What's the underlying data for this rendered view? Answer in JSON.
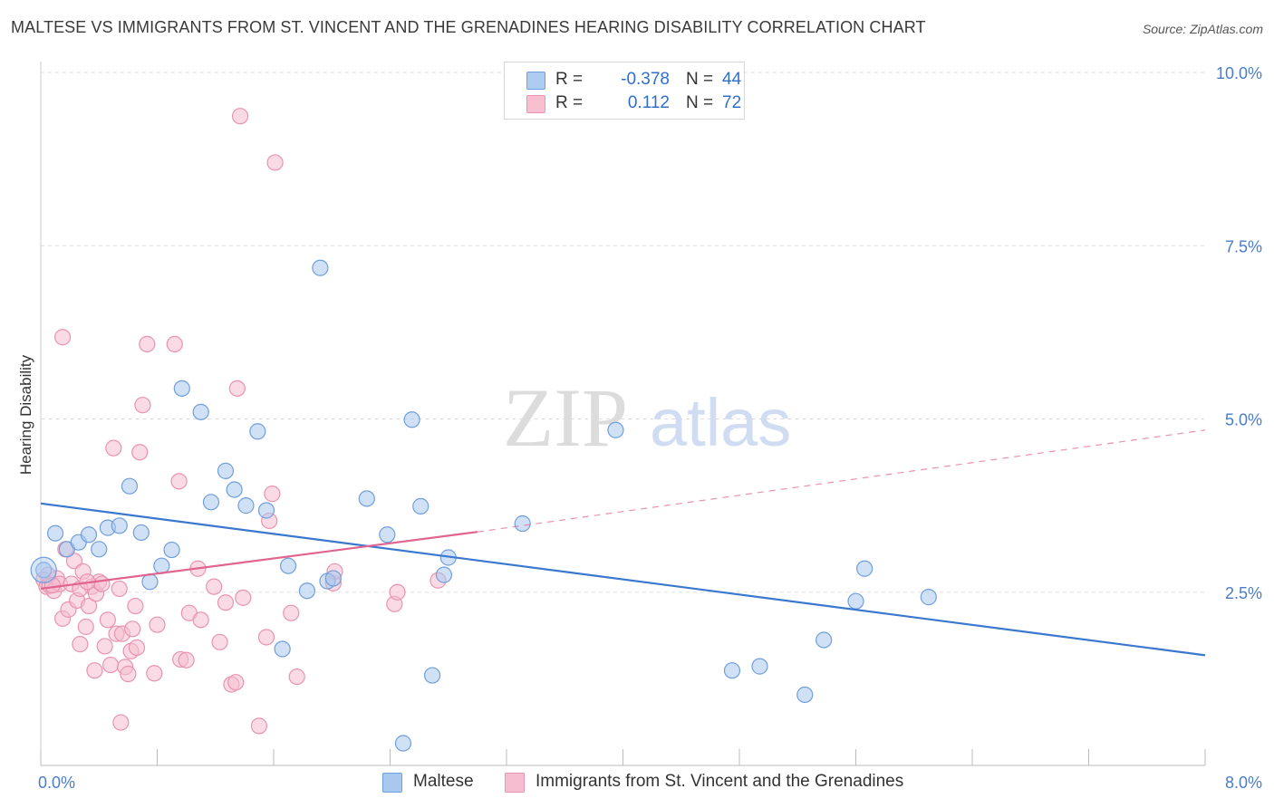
{
  "header": {
    "title": "MALTESE VS IMMIGRANTS FROM ST. VINCENT AND THE GRENADINES HEARING DISABILITY CORRELATION CHART",
    "source": "Source: ZipAtlas.com"
  },
  "watermark": {
    "zip": "ZIP",
    "atlas": "atlas"
  },
  "legend": {
    "rows": [
      {
        "r_label": "R =",
        "r_value": "-0.378",
        "n_label": "N =",
        "n_value": "44",
        "color": "#aecbf0",
        "stroke": "#6f9fdc"
      },
      {
        "r_label": "R =",
        "r_value": "0.112",
        "n_label": "N =",
        "n_value": "72",
        "color": "#f7bfd0",
        "stroke": "#e993b0"
      }
    ]
  },
  "colors": {
    "blue_fill": "#a9c8ee",
    "blue_stroke": "#6f9fdc",
    "blue_line": "#3a78cf",
    "pink_fill": "#f6bdd0",
    "pink_stroke": "#e993b0",
    "pink_line": "#e0648f",
    "grid": "#dddddd",
    "axis_label": "#4a7cc9"
  },
  "chart_data": {
    "type": "scatter",
    "xlabel": "",
    "ylabel": "Hearing Disability",
    "xlim": [
      0,
      8.0
    ],
    "ylim": [
      0,
      10.0
    ],
    "x_tick_labels": [
      "0.0%",
      "8.0%"
    ],
    "y_ticks": [
      2.5,
      5.0,
      7.5,
      10.0
    ],
    "y_tick_labels": [
      "2.5%",
      "5.0%",
      "7.5%",
      "10.0%"
    ],
    "grid": true,
    "legend_position": "top-center",
    "series": [
      {
        "name": "Maltese",
        "color": "#a9c8ee",
        "points": [
          [
            0.02,
            2.82
          ],
          [
            0.1,
            3.35
          ],
          [
            0.18,
            3.12
          ],
          [
            0.26,
            3.22
          ],
          [
            0.33,
            3.33
          ],
          [
            0.4,
            3.12
          ],
          [
            0.46,
            3.43
          ],
          [
            0.54,
            3.46
          ],
          [
            0.61,
            4.03
          ],
          [
            0.69,
            3.36
          ],
          [
            0.75,
            2.65
          ],
          [
            0.83,
            2.88
          ],
          [
            0.9,
            3.11
          ],
          [
            0.97,
            5.44
          ],
          [
            1.1,
            5.1
          ],
          [
            1.17,
            3.8
          ],
          [
            1.27,
            4.25
          ],
          [
            1.33,
            3.98
          ],
          [
            1.41,
            3.75
          ],
          [
            1.49,
            4.82
          ],
          [
            1.55,
            3.68
          ],
          [
            1.66,
            1.68
          ],
          [
            1.7,
            2.88
          ],
          [
            1.83,
            2.52
          ],
          [
            1.92,
            7.18
          ],
          [
            1.97,
            2.66
          ],
          [
            2.01,
            2.7
          ],
          [
            2.24,
            3.85
          ],
          [
            2.38,
            3.33
          ],
          [
            2.49,
            0.32
          ],
          [
            2.55,
            4.99
          ],
          [
            2.61,
            3.74
          ],
          [
            2.69,
            1.3
          ],
          [
            2.77,
            2.75
          ],
          [
            2.8,
            3.0
          ],
          [
            3.31,
            3.49
          ],
          [
            3.95,
            4.84
          ],
          [
            4.75,
            1.37
          ],
          [
            4.94,
            1.43
          ],
          [
            5.25,
            1.02
          ],
          [
            5.38,
            1.81
          ],
          [
            5.6,
            2.37
          ],
          [
            5.66,
            2.84
          ],
          [
            6.1,
            2.43
          ]
        ],
        "trend": {
          "x": [
            0.0,
            8.0
          ],
          "y": [
            3.78,
            1.59
          ],
          "dashed_extension": false
        }
      },
      {
        "name": "Immigrants from St. Vincent and the Grenadines",
        "color": "#f6bdd0",
        "points": [
          [
            0.02,
            2.68
          ],
          [
            0.04,
            2.58
          ],
          [
            0.06,
            2.6
          ],
          [
            0.09,
            2.52
          ],
          [
            0.11,
            2.7
          ],
          [
            0.13,
            2.62
          ],
          [
            0.15,
            2.12
          ],
          [
            0.17,
            3.12
          ],
          [
            0.19,
            2.25
          ],
          [
            0.21,
            2.62
          ],
          [
            0.23,
            2.95
          ],
          [
            0.25,
            2.38
          ],
          [
            0.27,
            1.75
          ],
          [
            0.29,
            2.8
          ],
          [
            0.31,
            2.0
          ],
          [
            0.33,
            2.3
          ],
          [
            0.35,
            2.58
          ],
          [
            0.37,
            1.37
          ],
          [
            0.38,
            2.48
          ],
          [
            0.4,
            2.65
          ],
          [
            0.42,
            2.62
          ],
          [
            0.44,
            1.72
          ],
          [
            0.46,
            2.1
          ],
          [
            0.48,
            1.45
          ],
          [
            0.5,
            4.58
          ],
          [
            0.52,
            1.9
          ],
          [
            0.54,
            2.55
          ],
          [
            0.55,
            0.62
          ],
          [
            0.56,
            1.9
          ],
          [
            0.58,
            1.42
          ],
          [
            0.6,
            1.32
          ],
          [
            0.62,
            1.65
          ],
          [
            0.63,
            1.97
          ],
          [
            0.65,
            2.3
          ],
          [
            0.66,
            1.7
          ],
          [
            0.68,
            4.52
          ],
          [
            0.7,
            5.2
          ],
          [
            0.73,
            6.08
          ],
          [
            0.78,
            1.33
          ],
          [
            0.8,
            2.03
          ],
          [
            0.92,
            6.08
          ],
          [
            0.95,
            4.1
          ],
          [
            0.96,
            1.53
          ],
          [
            1.0,
            1.52
          ],
          [
            1.02,
            2.2
          ],
          [
            1.08,
            2.84
          ],
          [
            1.1,
            2.1
          ],
          [
            1.19,
            2.58
          ],
          [
            1.23,
            1.78
          ],
          [
            1.27,
            2.35
          ],
          [
            1.31,
            1.17
          ],
          [
            1.34,
            1.2
          ],
          [
            1.35,
            5.44
          ],
          [
            1.37,
            9.37
          ],
          [
            1.39,
            2.42
          ],
          [
            1.5,
            0.57
          ],
          [
            1.55,
            1.85
          ],
          [
            1.57,
            3.53
          ],
          [
            1.59,
            3.92
          ],
          [
            1.61,
            8.7
          ],
          [
            1.72,
            2.2
          ],
          [
            1.76,
            1.28
          ],
          [
            2.01,
            2.63
          ],
          [
            2.02,
            2.8
          ],
          [
            2.43,
            2.33
          ],
          [
            2.45,
            2.5
          ],
          [
            2.73,
            2.67
          ],
          [
            0.15,
            6.18
          ],
          [
            0.05,
            2.75
          ],
          [
            0.08,
            2.6
          ],
          [
            0.27,
            2.55
          ],
          [
            0.32,
            2.65
          ]
        ],
        "trend": {
          "x": [
            0.0,
            3.0,
            8.0
          ],
          "y": [
            2.55,
            3.37,
            4.84
          ],
          "dashed_extension": true
        }
      }
    ]
  },
  "bottom_legend": {
    "items": [
      {
        "label": "Maltese",
        "color": "#a9c8ee"
      },
      {
        "label": "Immigrants from St. Vincent and the Grenadines",
        "color": "#f6bdd0"
      }
    ]
  }
}
